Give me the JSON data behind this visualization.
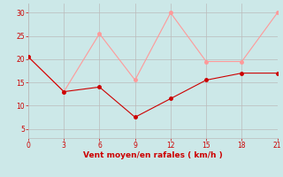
{
  "xlabel": "Vent moyen/en rafales ( km/h )",
  "xlabel_color": "#cc0000",
  "bg_color": "#cce8e8",
  "grid_color": "#bbbbbb",
  "xlim": [
    0,
    21
  ],
  "ylim": [
    3,
    32
  ],
  "xticks": [
    0,
    3,
    6,
    9,
    12,
    15,
    18,
    21
  ],
  "yticks": [
    5,
    10,
    15,
    20,
    25,
    30
  ],
  "line1_x": [
    0,
    3,
    6,
    9,
    12,
    15,
    18,
    21
  ],
  "line1_y": [
    20.5,
    13.0,
    14.0,
    7.5,
    11.5,
    15.5,
    17.0,
    17.0
  ],
  "line1_color": "#cc0000",
  "line2_x": [
    0,
    3,
    6,
    9,
    12,
    15,
    18,
    21
  ],
  "line2_y": [
    20.5,
    13.0,
    25.5,
    15.5,
    30.0,
    19.5,
    19.5,
    30.0
  ],
  "line2_color": "#ff9999",
  "marker_size": 2.5,
  "linewidth": 0.8
}
